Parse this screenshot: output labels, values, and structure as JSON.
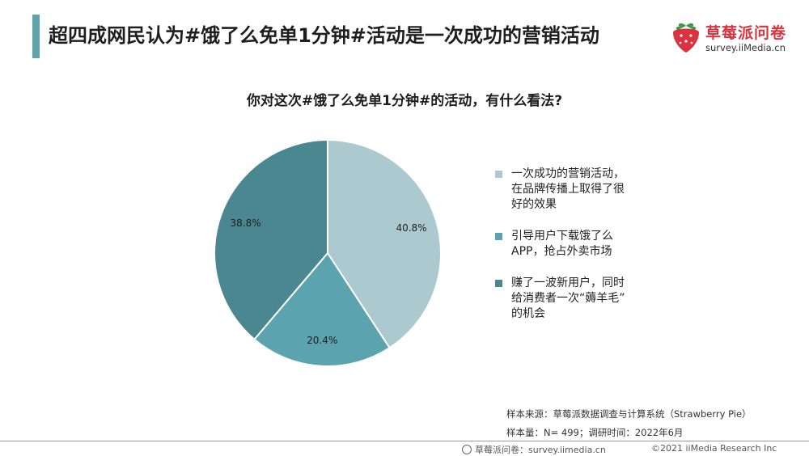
{
  "header": {
    "title": "超四成网民认为#饿了么免单1分钟#活动是一次成功的营销活动",
    "brand_name": "草莓派问卷",
    "brand_url": "survey.iiMedia.cn",
    "accent_color": "#5fa4ad",
    "logo_icon": "strawberry-icon"
  },
  "chart_data": {
    "type": "pie",
    "title": "你对这次#饿了么免单1分钟#的活动，有什么看法?",
    "slices": [
      {
        "label": "一次成功的营销活动，在品牌传播上取得了很好的效果",
        "value": 40.8,
        "value_label": "40.8%",
        "color": "#adc9d0",
        "legend_lines": [
          "一次成功的营销活动，",
          "在品牌传播上取得了很",
          "好的效果"
        ]
      },
      {
        "label": "引导用户下载饿了么APP，抢占外卖市场",
        "value": 20.4,
        "value_label": "20.4%",
        "color": "#5ba3ae",
        "legend_lines": [
          "引导用户下载饿了么",
          "APP，抢占外卖市场"
        ]
      },
      {
        "label": "赚了一波新用户，同时给消费者一次“薅羊毛”的机会",
        "value": 38.8,
        "value_label": "38.8%",
        "color": "#4a8790",
        "legend_lines": [
          "赚了一波新用户，同时",
          "给消费者一次“薅羊毛”",
          "的机会"
        ]
      }
    ],
    "legend_position": "right",
    "start_angle": "top, clockwise"
  },
  "footer": {
    "source": "样本来源：草莓派数据调查与计算系统（Strawberry Pie）",
    "sample": "样本量：N= 499；调研时间：2022年6月",
    "site": "草莓派问卷：survey.iimedia.cn",
    "copyright": "©2021  iiMedia Research  Inc"
  }
}
